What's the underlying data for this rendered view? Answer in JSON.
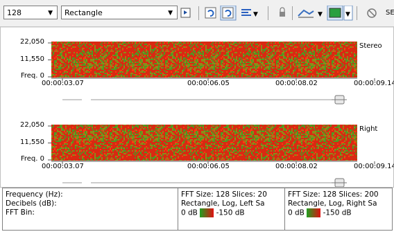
{
  "toolbar": {
    "fft_size": "128",
    "window": "Rectangle",
    "truncated_label": "SE"
  },
  "panels": [
    {
      "channel": "Stereo",
      "freq_labels": [
        "22,050",
        "11,550",
        "Freq. 0"
      ],
      "time_labels": [
        "00:00:03.07",
        "00:00:06.05",
        "00:00:08.02",
        "00:00:09.14"
      ]
    },
    {
      "channel": "Right",
      "freq_labels": [
        "22,050",
        "11,550",
        "Freq. 0"
      ],
      "time_labels": [
        "00:00:03.07",
        "00:00:06.05",
        "00:00:08.02",
        "00:00:09.14"
      ]
    }
  ],
  "info": {
    "labels": [
      "Frequency (Hz):",
      "Decibels (dB):",
      "FFT Bin:"
    ],
    "channels": [
      {
        "line1": "FFT Size: 128  Slices: 20",
        "line2": "Rectangle, Log, Left Sa",
        "db_max": "0 dB",
        "db_min": "-150 dB"
      },
      {
        "line1": "FFT Size: 128  Slices: 200",
        "line2": "Rectangle, Log, Right Sa",
        "db_max": "0 dB",
        "db_min": "-150 dB"
      }
    ]
  }
}
